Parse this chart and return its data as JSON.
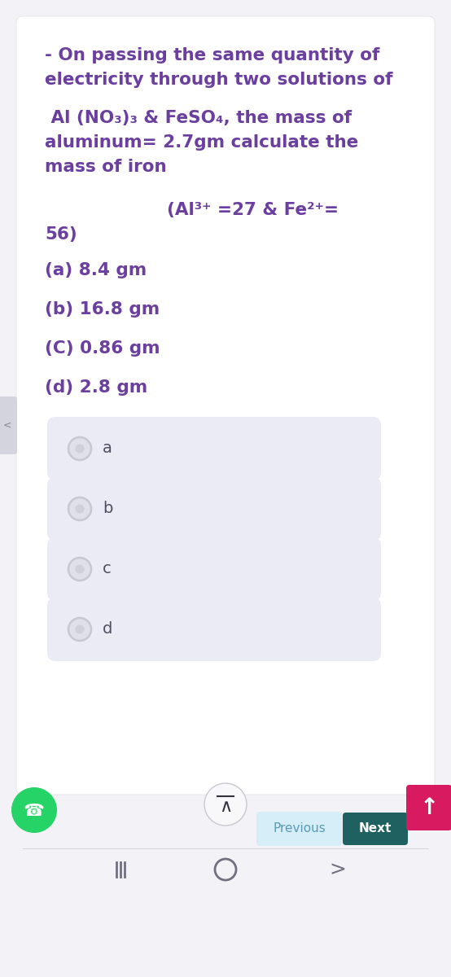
{
  "bg_color": "#f2f2f7",
  "card_color": "#ffffff",
  "option_box_color": "#eaebf5",
  "text_color": "#6b3fa0",
  "radio_outer_color": "#c8c8d4",
  "radio_inner_color": "#e0e0ea",
  "radio_dot_color": "#d0d0da",
  "question_lines": [
    "- On passing the same quantity of",
    "electricity through two solutions of",
    " Al (NO₃)₃ & FeSO₄, the mass of",
    "aluminum= 2.7gm calculate the",
    "mass of iron",
    "                    (Al³⁺ =27 & Fe²⁺=",
    "56)"
  ],
  "options": [
    "(a) 8.4 gm",
    "(b) 16.8 gm",
    "(C) 0.86 gm",
    "(d) 2.8 gm"
  ],
  "option_labels": [
    "a",
    "b",
    "c",
    "d"
  ],
  "prev_button_color": "#d6eef7",
  "prev_text_color": "#5a9ab5",
  "next_button_color": "#1f6060",
  "up_button_color": "#d81b60",
  "whatsapp_color": "#25d366",
  "nav_color": "#f2f2f7",
  "side_tab_color": "#d4d4de"
}
